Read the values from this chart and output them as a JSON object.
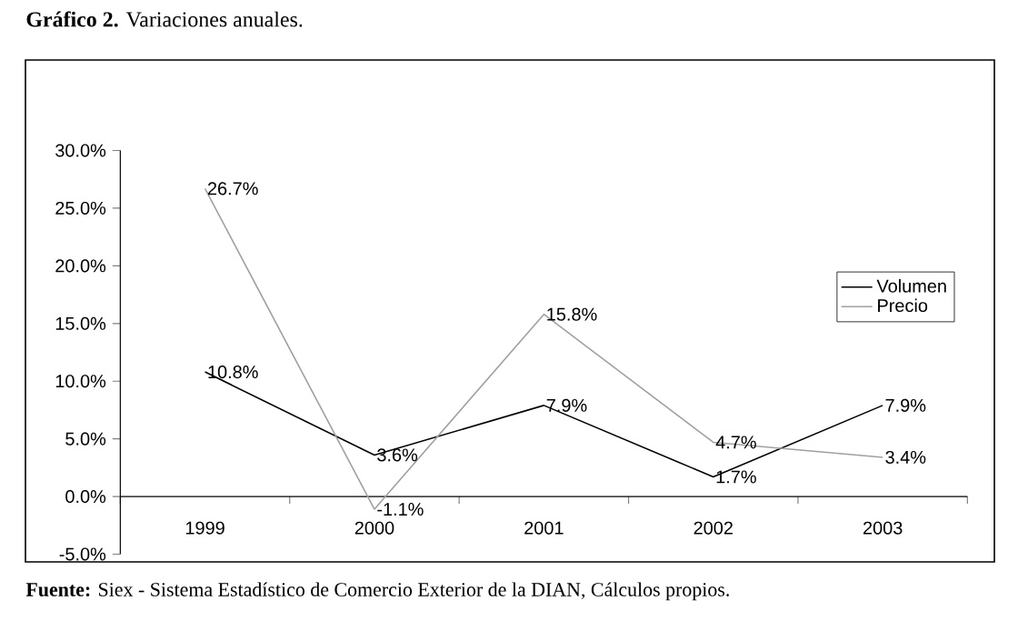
{
  "chart_data": {
    "type": "line",
    "title": "**Gráfico 2.** Variaciones anuales.",
    "categories": [
      "1999",
      "2000",
      "2001",
      "2002",
      "2003"
    ],
    "series": [
      {
        "name": "Volumen",
        "color": "#000000",
        "values": [
          10.8,
          3.6,
          7.9,
          1.7,
          7.9
        ],
        "value_labels": [
          "10.8%",
          "3.6%",
          "7.9%",
          "1.7%",
          "7.9%"
        ]
      },
      {
        "name": "Precio",
        "color": "#a0a0a0",
        "values": [
          26.7,
          -1.1,
          15.8,
          4.7,
          3.4
        ],
        "value_labels": [
          "26.7%",
          "-1.1%",
          "15.8%",
          "4.7%",
          "3.4%"
        ]
      }
    ],
    "ylim": [
      -5,
      30
    ],
    "yticks": [
      {
        "value": -5,
        "label": "-5.0%"
      },
      {
        "value": 0,
        "label": "0.0%"
      },
      {
        "value": 5,
        "label": "5.0%"
      },
      {
        "value": 10,
        "label": "10.0%"
      },
      {
        "value": 15,
        "label": "15.0%"
      },
      {
        "value": 20,
        "label": "20.0%"
      },
      {
        "value": 25,
        "label": "25.0%"
      },
      {
        "value": 30,
        "label": "30.0%"
      }
    ],
    "grid": false,
    "legend": "right",
    "marker": "none",
    "line_style": "solid",
    "annotations": [
      "**Fuente:** Siex - Sistema Estadístico de Comercio Exterior de la DIAN, Cálculos propios."
    ]
  }
}
